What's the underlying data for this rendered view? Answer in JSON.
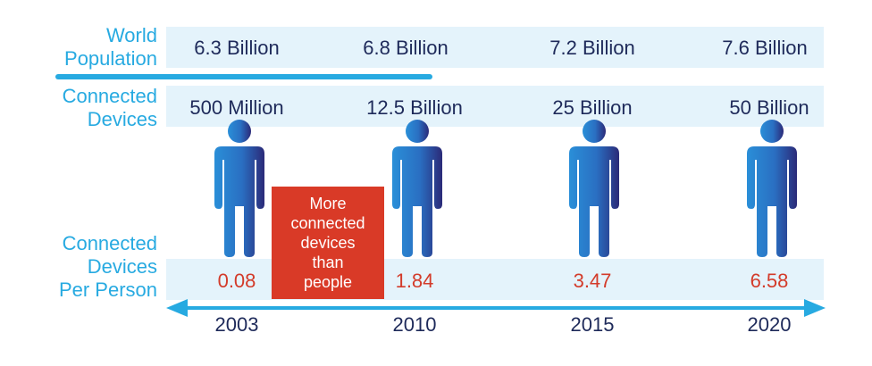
{
  "labels": {
    "world_population": [
      "World",
      "Population"
    ],
    "connected_devices": [
      "Connected",
      "Devices"
    ],
    "devices_per_person": [
      "Connected",
      "Devices",
      "Per Person"
    ]
  },
  "world_population": [
    "6.3 Billion",
    "6.8 Billion",
    "7.2 Billion",
    "7.6 Billion"
  ],
  "connected_devices": [
    "500 Million",
    "12.5 Billion",
    "25 Billion",
    "50 Billion"
  ],
  "devices_per_person": [
    "0.08",
    "1.84",
    "3.47",
    "6.58"
  ],
  "years": [
    "2003",
    "2010",
    "2015",
    "2020"
  ],
  "callout": [
    "More",
    "connected",
    "devices",
    "than",
    "people"
  ],
  "icons": {
    "person": "person-icon",
    "timeline": "double-arrow-icon"
  },
  "colors": {
    "accent": "#27aae1",
    "text_dark": "#1e2a5a",
    "ratio": "#d33b2a",
    "callout_bg": "#d93a27",
    "band": "#e4f3fb",
    "person_light": "#2a8fd8",
    "person_dark": "#2b2a78"
  }
}
